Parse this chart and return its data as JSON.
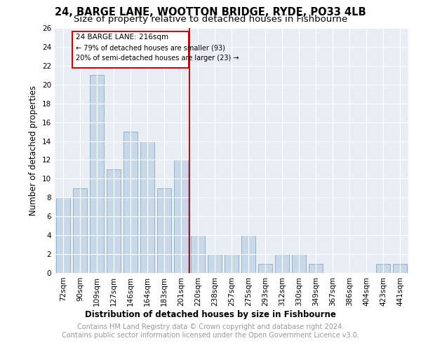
{
  "title": "24, BARGE LANE, WOOTTON BRIDGE, RYDE, PO33 4LB",
  "subtitle": "Size of property relative to detached houses in Fishbourne",
  "xlabel": "Distribution of detached houses by size in Fishbourne",
  "ylabel": "Number of detached properties",
  "categories": [
    "72sqm",
    "90sqm",
    "109sqm",
    "127sqm",
    "146sqm",
    "164sqm",
    "183sqm",
    "201sqm",
    "220sqm",
    "238sqm",
    "257sqm",
    "275sqm",
    "293sqm",
    "312sqm",
    "330sqm",
    "349sqm",
    "367sqm",
    "386sqm",
    "404sqm",
    "423sqm",
    "441sqm"
  ],
  "values": [
    8,
    9,
    21,
    11,
    15,
    14,
    9,
    12,
    4,
    2,
    2,
    4,
    1,
    2,
    2,
    1,
    0,
    0,
    0,
    1,
    1
  ],
  "bar_color": "#c8d8e8",
  "bar_edge_color": "#8aaabe",
  "highlight_line_index": 8,
  "annotation_title": "24 BARGE LANE: 216sqm",
  "annotation_line1": "← 79% of detached houses are smaller (93)",
  "annotation_line2": "20% of semi-detached houses are larger (23) →",
  "red_line_color": "#cc0000",
  "annotation_box_color": "#cc0000",
  "ylim": [
    0,
    26
  ],
  "yticks": [
    0,
    2,
    4,
    6,
    8,
    10,
    12,
    14,
    16,
    18,
    20,
    22,
    24,
    26
  ],
  "background_color": "#e8eef4",
  "footer_text": "Contains HM Land Registry data © Crown copyright and database right 2024.\nContains public sector information licensed under the Open Government Licence v3.0.",
  "title_fontsize": 10.5,
  "subtitle_fontsize": 9.5,
  "axis_label_fontsize": 8.5,
  "tick_fontsize": 7.5,
  "footer_fontsize": 7.0
}
